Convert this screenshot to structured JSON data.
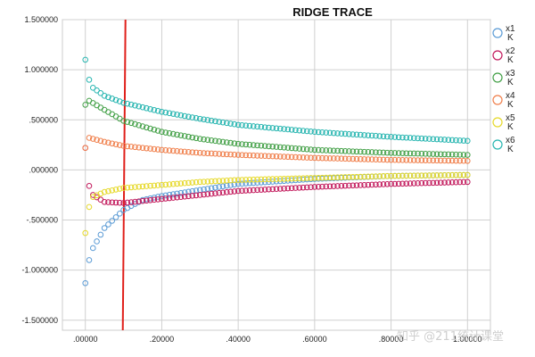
{
  "chart_data": {
    "type": "scatter",
    "title": "RIDGE TRACE",
    "xlabel": "",
    "ylabel": "",
    "xlim": [
      -0.06,
      1.06
    ],
    "ylim": [
      -1.6,
      1.5
    ],
    "x_ticks": [
      0.0,
      0.2,
      0.4,
      0.6,
      0.8,
      1.0
    ],
    "x_tick_labels": [
      ".00000",
      ".20000",
      ".40000",
      ".60000",
      ".80000",
      "1.00000"
    ],
    "y_ticks": [
      1.5,
      1.0,
      0.5,
      0.0,
      -0.5,
      -1.0,
      -1.5
    ],
    "y_tick_labels": [
      "1.500000",
      "1.000000",
      ".500000",
      ".000000",
      "-.500000",
      "-1.000000",
      "-1.500000"
    ],
    "grid": true,
    "legend_position": "right",
    "reference_line": {
      "x": 0.1,
      "color": "#e0201b"
    },
    "series": [
      {
        "name": "x1",
        "sublabel": "K",
        "color": "#5b9bd5",
        "anchors": [
          [
            0,
            -1.13
          ],
          [
            0.01,
            -0.9
          ],
          [
            0.02,
            -0.78
          ],
          [
            0.05,
            -0.58
          ],
          [
            0.1,
            -0.4
          ],
          [
            0.15,
            -0.3
          ],
          [
            0.2,
            -0.26
          ],
          [
            0.3,
            -0.2
          ],
          [
            0.4,
            -0.14
          ],
          [
            0.6,
            -0.09
          ],
          [
            0.8,
            -0.06
          ],
          [
            1.0,
            -0.05
          ]
        ]
      },
      {
        "name": "x2",
        "sublabel": "K",
        "color": "#c2185b",
        "anchors": [
          [
            0,
            0.22
          ],
          [
            0.01,
            -0.16
          ],
          [
            0.02,
            -0.25
          ],
          [
            0.05,
            -0.32
          ],
          [
            0.1,
            -0.33
          ],
          [
            0.2,
            -0.29
          ],
          [
            0.3,
            -0.25
          ],
          [
            0.4,
            -0.21
          ],
          [
            0.6,
            -0.17
          ],
          [
            0.8,
            -0.14
          ],
          [
            1.0,
            -0.12
          ]
        ]
      },
      {
        "name": "x3",
        "sublabel": "K",
        "color": "#43a047",
        "anchors": [
          [
            0,
            0.65
          ],
          [
            0.01,
            0.69
          ],
          [
            0.05,
            0.6
          ],
          [
            0.1,
            0.49
          ],
          [
            0.2,
            0.38
          ],
          [
            0.3,
            0.31
          ],
          [
            0.4,
            0.26
          ],
          [
            0.6,
            0.2
          ],
          [
            0.8,
            0.17
          ],
          [
            1.0,
            0.15
          ]
        ]
      },
      {
        "name": "x4",
        "sublabel": "K",
        "color": "#f07f4b",
        "anchors": [
          [
            0,
            0.22
          ],
          [
            0.01,
            0.32
          ],
          [
            0.05,
            0.28
          ],
          [
            0.1,
            0.24
          ],
          [
            0.2,
            0.2
          ],
          [
            0.3,
            0.17
          ],
          [
            0.4,
            0.15
          ],
          [
            0.6,
            0.12
          ],
          [
            0.8,
            0.1
          ],
          [
            1.0,
            0.09
          ]
        ]
      },
      {
        "name": "x5",
        "sublabel": "K",
        "color": "#e6d92a",
        "anchors": [
          [
            0,
            -0.63
          ],
          [
            0.01,
            -0.37
          ],
          [
            0.02,
            -0.27
          ],
          [
            0.05,
            -0.22
          ],
          [
            0.1,
            -0.18
          ],
          [
            0.2,
            -0.15
          ],
          [
            0.3,
            -0.12
          ],
          [
            0.4,
            -0.1
          ],
          [
            0.6,
            -0.08
          ],
          [
            0.8,
            -0.06
          ],
          [
            1.0,
            -0.05
          ]
        ]
      },
      {
        "name": "x6",
        "sublabel": "K",
        "color": "#26b5b0",
        "anchors": [
          [
            0,
            1.1
          ],
          [
            0.01,
            0.9
          ],
          [
            0.02,
            0.82
          ],
          [
            0.05,
            0.74
          ],
          [
            0.1,
            0.67
          ],
          [
            0.2,
            0.58
          ],
          [
            0.3,
            0.51
          ],
          [
            0.4,
            0.45
          ],
          [
            0.6,
            0.38
          ],
          [
            0.8,
            0.33
          ],
          [
            1.0,
            0.29
          ]
        ]
      }
    ]
  },
  "watermark": "知乎 @211统计课堂"
}
